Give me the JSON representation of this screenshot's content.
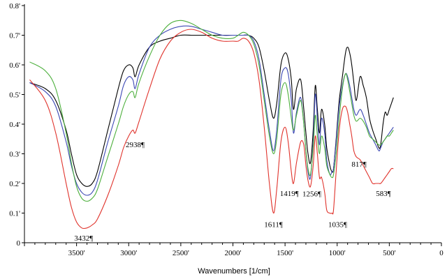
{
  "chart_data": {
    "type": "line",
    "title": "",
    "xlabel": "Wavenumbers [1/cm]",
    "ylabel": "",
    "xlim": [
      4000,
      0
    ],
    "ylim": [
      0,
      0.8
    ],
    "x_ticks": [
      3500,
      3000,
      2500,
      2000,
      1500,
      1000,
      500,
      0
    ],
    "x_tick_labels": [
      "3500'",
      "3000'",
      "2500'",
      "2000'",
      "1500'",
      "1000'",
      "500'",
      "0"
    ],
    "y_ticks": [
      0,
      0.1,
      0.2,
      0.3,
      0.4,
      0.5,
      0.6,
      0.7,
      0.8
    ],
    "y_tick_labels": [
      "0",
      "0.1'",
      "0.2'",
      "0.3'",
      "0.4'",
      "0.5'",
      "0.6'",
      "0.7'",
      "0.8'"
    ],
    "grid": false,
    "series": [
      {
        "color": "#000000",
        "x": [
          3950,
          3800,
          3700,
          3600,
          3550,
          3500,
          3450,
          3400,
          3350,
          3300,
          3200,
          3100,
          3050,
          3000,
          2960,
          2938,
          2900,
          2800,
          2700,
          2600,
          2500,
          2400,
          2300,
          2200,
          2100,
          2000,
          1950,
          1900,
          1850,
          1800,
          1750,
          1700,
          1650,
          1611,
          1580,
          1540,
          1500,
          1470,
          1440,
          1419,
          1390,
          1350,
          1320,
          1300,
          1280,
          1256,
          1230,
          1210,
          1190,
          1170,
          1150,
          1120,
          1100,
          1070,
          1050,
          1035,
          1010,
          980,
          950,
          920,
          900,
          880,
          860,
          840,
          817,
          780,
          750,
          720,
          690,
          660,
          630,
          600,
          583,
          560,
          540,
          520,
          500,
          480,
          460
        ],
        "y": [
          0.54,
          0.52,
          0.48,
          0.38,
          0.3,
          0.23,
          0.2,
          0.19,
          0.2,
          0.24,
          0.38,
          0.52,
          0.58,
          0.6,
          0.59,
          0.56,
          0.6,
          0.66,
          0.68,
          0.69,
          0.7,
          0.7,
          0.7,
          0.7,
          0.7,
          0.7,
          0.7,
          0.7,
          0.7,
          0.69,
          0.66,
          0.58,
          0.48,
          0.42,
          0.47,
          0.6,
          0.64,
          0.62,
          0.55,
          0.45,
          0.52,
          0.55,
          0.45,
          0.37,
          0.3,
          0.27,
          0.38,
          0.53,
          0.45,
          0.37,
          0.45,
          0.4,
          0.32,
          0.26,
          0.24,
          0.25,
          0.35,
          0.48,
          0.56,
          0.64,
          0.66,
          0.64,
          0.6,
          0.54,
          0.48,
          0.56,
          0.53,
          0.49,
          0.42,
          0.38,
          0.35,
          0.32,
          0.33,
          0.4,
          0.44,
          0.43,
          0.45,
          0.47,
          0.49
        ]
      },
      {
        "color": "#3c48b4",
        "x": [
          3950,
          3800,
          3700,
          3600,
          3550,
          3500,
          3450,
          3400,
          3350,
          3300,
          3200,
          3100,
          3050,
          3000,
          2960,
          2938,
          2900,
          2800,
          2700,
          2600,
          2500,
          2400,
          2300,
          2200,
          2100,
          2000,
          1950,
          1900,
          1850,
          1800,
          1750,
          1700,
          1650,
          1611,
          1580,
          1540,
          1500,
          1470,
          1440,
          1419,
          1390,
          1350,
          1320,
          1300,
          1280,
          1256,
          1230,
          1210,
          1190,
          1170,
          1150,
          1120,
          1100,
          1070,
          1050,
          1035,
          1010,
          980,
          950,
          920,
          900,
          880,
          860,
          840,
          817,
          780,
          750,
          720,
          690,
          660,
          630,
          600,
          583,
          560,
          540,
          520,
          500,
          480,
          460
        ],
        "y": [
          0.54,
          0.51,
          0.46,
          0.34,
          0.26,
          0.2,
          0.17,
          0.16,
          0.17,
          0.21,
          0.34,
          0.46,
          0.53,
          0.56,
          0.55,
          0.52,
          0.57,
          0.66,
          0.7,
          0.72,
          0.73,
          0.73,
          0.72,
          0.71,
          0.7,
          0.7,
          0.7,
          0.7,
          0.7,
          0.68,
          0.62,
          0.5,
          0.38,
          0.31,
          0.38,
          0.55,
          0.59,
          0.57,
          0.48,
          0.37,
          0.44,
          0.49,
          0.4,
          0.31,
          0.24,
          0.22,
          0.34,
          0.5,
          0.42,
          0.33,
          0.42,
          0.37,
          0.28,
          0.23,
          0.24,
          0.25,
          0.34,
          0.46,
          0.53,
          0.57,
          0.56,
          0.53,
          0.49,
          0.45,
          0.43,
          0.45,
          0.43,
          0.4,
          0.37,
          0.35,
          0.33,
          0.31,
          0.32,
          0.34,
          0.35,
          0.36,
          0.37,
          0.38,
          0.39
        ]
      },
      {
        "color": "#4caf3c",
        "x": [
          3950,
          3800,
          3700,
          3600,
          3550,
          3500,
          3450,
          3400,
          3350,
          3300,
          3200,
          3100,
          3050,
          3000,
          2960,
          2938,
          2900,
          2800,
          2700,
          2600,
          2500,
          2400,
          2300,
          2200,
          2100,
          2000,
          1950,
          1900,
          1850,
          1800,
          1750,
          1700,
          1650,
          1611,
          1580,
          1540,
          1500,
          1470,
          1440,
          1419,
          1390,
          1350,
          1320,
          1300,
          1280,
          1256,
          1230,
          1210,
          1190,
          1170,
          1150,
          1120,
          1100,
          1070,
          1050,
          1035,
          1010,
          980,
          950,
          920,
          900,
          880,
          860,
          840,
          817,
          780,
          750,
          720,
          690,
          660,
          630,
          600,
          583,
          560,
          540,
          520,
          500,
          480,
          460
        ],
        "y": [
          0.61,
          0.58,
          0.52,
          0.37,
          0.27,
          0.19,
          0.15,
          0.14,
          0.15,
          0.18,
          0.29,
          0.4,
          0.46,
          0.5,
          0.51,
          0.49,
          0.54,
          0.63,
          0.7,
          0.74,
          0.75,
          0.74,
          0.72,
          0.7,
          0.69,
          0.69,
          0.7,
          0.71,
          0.7,
          0.67,
          0.6,
          0.48,
          0.36,
          0.3,
          0.35,
          0.5,
          0.54,
          0.5,
          0.42,
          0.38,
          0.43,
          0.48,
          0.4,
          0.31,
          0.25,
          0.23,
          0.32,
          0.43,
          0.36,
          0.3,
          0.36,
          0.32,
          0.26,
          0.23,
          0.22,
          0.23,
          0.3,
          0.42,
          0.52,
          0.57,
          0.55,
          0.51,
          0.47,
          0.43,
          0.41,
          0.42,
          0.41,
          0.39,
          0.36,
          0.35,
          0.34,
          0.33,
          0.33,
          0.34,
          0.35,
          0.36,
          0.36,
          0.37,
          0.38
        ]
      },
      {
        "color": "#e0332c",
        "x": [
          3950,
          3800,
          3700,
          3600,
          3550,
          3500,
          3450,
          3400,
          3350,
          3300,
          3200,
          3100,
          3050,
          3000,
          2960,
          2938,
          2900,
          2800,
          2700,
          2600,
          2500,
          2400,
          2300,
          2200,
          2100,
          2000,
          1950,
          1900,
          1850,
          1800,
          1750,
          1700,
          1650,
          1611,
          1580,
          1540,
          1500,
          1470,
          1440,
          1419,
          1390,
          1350,
          1320,
          1300,
          1280,
          1256,
          1230,
          1210,
          1190,
          1170,
          1150,
          1120,
          1100,
          1070,
          1050,
          1035,
          1010,
          980,
          950,
          920,
          900,
          880,
          860,
          840,
          817,
          780,
          750,
          720,
          690,
          660,
          630,
          600,
          583,
          560,
          540,
          520,
          500,
          480,
          460
        ],
        "y": [
          0.55,
          0.48,
          0.37,
          0.2,
          0.12,
          0.07,
          0.05,
          0.05,
          0.06,
          0.08,
          0.16,
          0.26,
          0.32,
          0.36,
          0.38,
          0.37,
          0.41,
          0.52,
          0.62,
          0.68,
          0.71,
          0.72,
          0.71,
          0.69,
          0.68,
          0.68,
          0.68,
          0.69,
          0.68,
          0.64,
          0.55,
          0.39,
          0.2,
          0.1,
          0.18,
          0.34,
          0.39,
          0.34,
          0.24,
          0.2,
          0.27,
          0.34,
          0.33,
          0.26,
          0.21,
          0.19,
          0.26,
          0.36,
          0.3,
          0.22,
          0.22,
          0.17,
          0.11,
          0.1,
          0.1,
          0.11,
          0.24,
          0.38,
          0.45,
          0.46,
          0.44,
          0.4,
          0.36,
          0.31,
          0.29,
          0.28,
          0.26,
          0.24,
          0.22,
          0.2,
          0.2,
          0.2,
          0.2,
          0.21,
          0.22,
          0.23,
          0.24,
          0.25,
          0.25
        ]
      }
    ],
    "annotations": [
      {
        "text": "3432¶",
        "x": 3432,
        "y": 0.05
      },
      {
        "text": "2938¶",
        "x": 2938,
        "y": 0.37
      },
      {
        "text": "1611¶",
        "x": 1611,
        "y": 0.1
      },
      {
        "text": "1419¶",
        "x": 1419,
        "y": 0.2
      },
      {
        "text": "1256¶",
        "x": 1256,
        "y": 0.19
      },
      {
        "text": "1035¶",
        "x": 1035,
        "y": 0.1
      },
      {
        "text": "817¶",
        "x": 817,
        "y": 0.29
      },
      {
        "text": "583¶",
        "x": 583,
        "y": 0.2
      }
    ]
  }
}
